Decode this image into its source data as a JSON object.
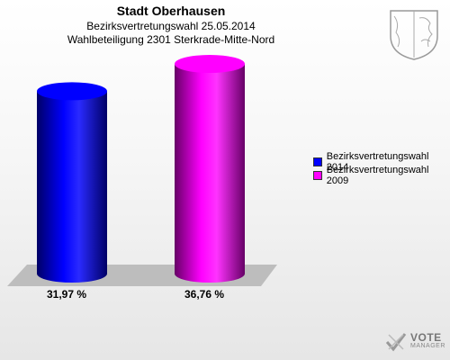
{
  "chart_data": {
    "type": "bar",
    "title": "Stadt Oberhausen",
    "subtitle_lines": [
      "Bezirksvertretungswahl 25.05.2014",
      "Wahlbeteiligung 2301 Sterkrade-Mitte-Nord"
    ],
    "categories": [
      "Bezirksvertretungswahl 2014",
      "Bezirksvertretungswahl 2009"
    ],
    "values": [
      31.97,
      36.76
    ],
    "value_labels": [
      "31,97 %",
      "36,76 %"
    ],
    "colors": [
      "#0000ff",
      "#ff00ff"
    ],
    "ylim": [
      0,
      36.76
    ],
    "legend": {
      "position": "right",
      "entries": [
        "Bezirksvertretungswahl 2014",
        "Bezirksvertretungswahl 2009"
      ]
    },
    "grid": false
  },
  "icons": {
    "crest": "coat-of-arms-icon",
    "logo": "vote-manager-logo-icon"
  },
  "logo": {
    "main": "VOTE",
    "sub": "MANAGER"
  }
}
